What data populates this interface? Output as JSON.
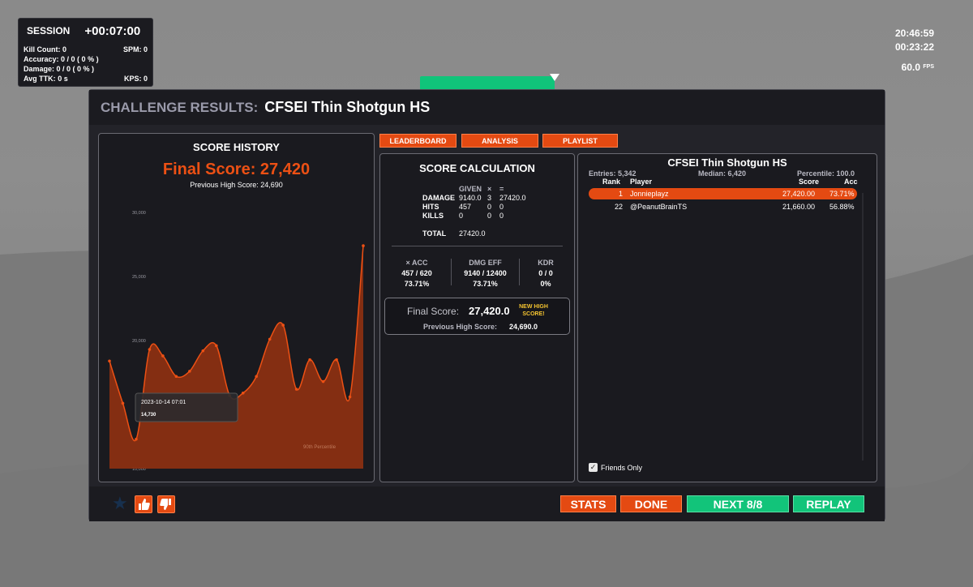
{
  "session": {
    "title": "SESSION",
    "time": "+00:07:00",
    "kill_count_label": "Kill Count:",
    "kill_count": "0",
    "spm_label": "SPM:",
    "spm": "0",
    "accuracy_label": "Accuracy:",
    "accuracy": "0 / 0  ( 0 % )",
    "damage_label": "Damage:",
    "damage": "0 / 0  ( 0 % )",
    "ttk_label": "Avg TTK:",
    "ttk": "0 s",
    "kps_label": "KPS:",
    "kps": "0"
  },
  "hud": {
    "clock": "20:46:59",
    "elapsed": "00:23:22",
    "fps": "60.0",
    "fps_unit": "FPS"
  },
  "modal": {
    "title_label": "CHALLENGE RESULTS:",
    "title_name": "CFSEI Thin Shotgun HS"
  },
  "tabs": [
    "LEADERBOARD",
    "ANALYSIS",
    "PLAYLIST"
  ],
  "score_history": {
    "heading": "SCORE HISTORY",
    "final_score": "Final Score: 27,420",
    "previous_high": "Previous High Score: 24,690",
    "tooltip_date": "2023-10-14 07:01",
    "tooltip_value": "14,730",
    "percentile_label": "90th Percentile"
  },
  "chart_data": {
    "type": "area",
    "ylim": [
      10000,
      30000
    ],
    "yticks": [
      {
        "label": "30,000",
        "value": 30000
      },
      {
        "label": "25,000",
        "value": 25000
      },
      {
        "label": "20,000",
        "value": 20000
      },
      {
        "label": "10,000",
        "value": 10000
      }
    ],
    "series": [
      {
        "values": [
          18400,
          15100,
          12300,
          19300,
          18800,
          17200,
          17600,
          19200,
          19600,
          15700,
          15900,
          17200,
          20100,
          21200,
          16200,
          18500,
          16800,
          18500,
          15600,
          27400
        ]
      }
    ]
  },
  "score_calc": {
    "heading": "SCORE CALCULATION",
    "col_given": "GIVEN",
    "col_times": "×",
    "col_eq": "=",
    "rows": [
      {
        "label": "DAMAGE",
        "given": "9140.0",
        "mult": "3",
        "result": "27420.0"
      },
      {
        "label": "HITS",
        "given": "457",
        "mult": "0",
        "result": "0"
      },
      {
        "label": "KILLS",
        "given": "0",
        "mult": "0",
        "result": "0"
      }
    ],
    "total_label": "TOTAL",
    "total": "27420.0",
    "acc_label": "× ACC",
    "acc_ratio": "457 / 620",
    "acc_pct": "73.71%",
    "dmg_label": "DMG EFF",
    "dmg_ratio": "9140 / 12400",
    "dmg_pct": "73.71%",
    "kdr_label": "KDR",
    "kdr_ratio": "0 / 0",
    "kdr_pct": "0%",
    "final_label": "Final Score:",
    "final_value": "27,420.0",
    "new_high_1": "NEW HIGH",
    "new_high_2": "SCORE!",
    "prev_label": "Previous High Score:",
    "prev_value": "24,690.0"
  },
  "leaderboard": {
    "title": "CFSEI Thin Shotgun HS",
    "entries": "Entries: 5,342",
    "median": "Median: 6,420",
    "percentile": "Percentile: 100.0",
    "col_rank": "Rank",
    "col_player": "Player",
    "col_score": "Score",
    "col_acc": "Acc",
    "rows": [
      {
        "rank": "1",
        "player": "Jonnieplayz",
        "score": "27,420.00",
        "acc": "73.71%"
      },
      {
        "rank": "22",
        "player": "@PeanutBrainTS",
        "score": "21,660.00",
        "acc": "56.88%"
      }
    ],
    "friends_only": "Friends Only"
  },
  "buttons": {
    "stats": "STATS",
    "done": "DONE",
    "next": "NEXT 8/8",
    "replay": "REPLAY"
  },
  "icons": {
    "favorite": "star-icon",
    "like": "thumbs-up-icon",
    "dislike": "thumbs-down-icon"
  },
  "colors": {
    "accent": "#e44a12",
    "score_orange": "#ec5014",
    "green": "#12c47a",
    "new_high": "#f5c430"
  }
}
